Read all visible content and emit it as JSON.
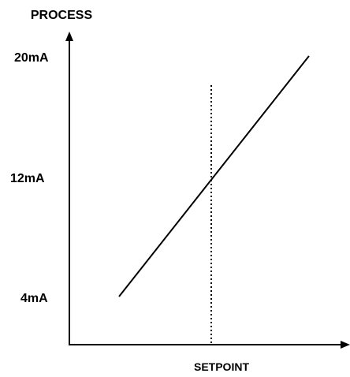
{
  "y_axis": {
    "label": "PROCESS",
    "ticks": [
      "20mA",
      "12mA",
      "4mA"
    ]
  },
  "x_axis": {
    "label": "SETPOINT"
  },
  "colors": {
    "line": "#000000",
    "background": "#ffffff"
  }
}
